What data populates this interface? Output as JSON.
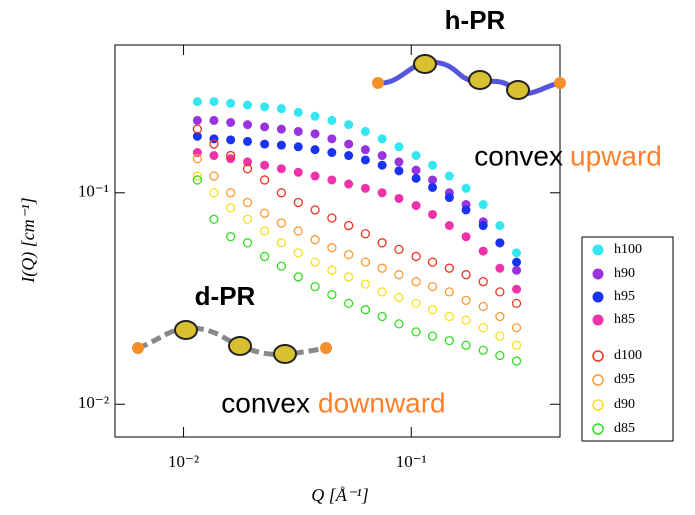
{
  "chart_data": {
    "type": "scatter",
    "x_label": "Q [Å⁻¹]",
    "y_label": "I(Q) [cm⁻¹]",
    "xlog": true,
    "ylog": true,
    "xlim": [
      0.005,
      0.45
    ],
    "ylim": [
      0.007,
      0.5
    ],
    "xticks": [
      {
        "value": 0.01,
        "label": "10⁻²"
      },
      {
        "value": 0.1,
        "label": "10⁻¹"
      }
    ],
    "yticks": [
      {
        "value": 0.01,
        "label": "10⁻²"
      },
      {
        "value": 0.1,
        "label": "10⁻¹"
      }
    ],
    "x": [
      0.0115,
      0.0136,
      0.0161,
      0.0191,
      0.0227,
      0.0269,
      0.0319,
      0.0378,
      0.0448,
      0.0531,
      0.0629,
      0.0745,
      0.0883,
      0.105,
      0.124,
      0.147,
      0.174,
      0.207,
      0.245,
      0.29
    ],
    "series": [
      {
        "name": "h100",
        "color": "#33e6f0",
        "marker": "filled",
        "values": [
          0.27,
          0.27,
          0.265,
          0.26,
          0.255,
          0.25,
          0.24,
          0.23,
          0.22,
          0.21,
          0.195,
          0.18,
          0.165,
          0.15,
          0.135,
          0.12,
          0.105,
          0.088,
          0.07,
          0.052
        ]
      },
      {
        "name": "h90",
        "color": "#9933dd",
        "marker": "filled",
        "values": [
          0.22,
          0.22,
          0.215,
          0.21,
          0.205,
          0.2,
          0.195,
          0.19,
          0.18,
          0.17,
          0.16,
          0.15,
          0.14,
          0.128,
          0.115,
          0.1,
          0.088,
          0.073,
          0.058,
          0.043
        ]
      },
      {
        "name": "h95",
        "color": "#1a33ee",
        "marker": "filled",
        "values": [
          0.185,
          0.18,
          0.178,
          0.175,
          0.17,
          0.168,
          0.165,
          0.16,
          0.155,
          0.15,
          0.143,
          0.135,
          0.127,
          0.117,
          0.106,
          0.095,
          0.083,
          0.07,
          0.058,
          0.047
        ]
      },
      {
        "name": "h85",
        "color": "#ee33aa",
        "marker": "filled",
        "values": [
          0.155,
          0.15,
          0.145,
          0.14,
          0.135,
          0.13,
          0.125,
          0.12,
          0.115,
          0.11,
          0.105,
          0.1,
          0.094,
          0.087,
          0.079,
          0.07,
          0.062,
          0.053,
          0.044,
          0.035
        ]
      },
      {
        "name": "d100",
        "color": "#ee3322",
        "marker": "open",
        "values": [
          0.2,
          0.17,
          0.15,
          0.13,
          0.115,
          0.1,
          0.09,
          0.083,
          0.076,
          0.07,
          0.064,
          0.058,
          0.054,
          0.05,
          0.047,
          0.044,
          0.041,
          0.038,
          0.034,
          0.03
        ]
      },
      {
        "name": "d95",
        "color": "#ff9933",
        "marker": "open",
        "values": [
          0.145,
          0.12,
          0.1,
          0.09,
          0.08,
          0.072,
          0.066,
          0.06,
          0.055,
          0.051,
          0.047,
          0.044,
          0.041,
          0.038,
          0.036,
          0.034,
          0.031,
          0.029,
          0.026,
          0.023
        ]
      },
      {
        "name": "d90",
        "color": "#f5e020",
        "marker": "open",
        "values": [
          0.12,
          0.1,
          0.085,
          0.075,
          0.066,
          0.058,
          0.052,
          0.047,
          0.043,
          0.04,
          0.037,
          0.034,
          0.032,
          0.03,
          0.028,
          0.026,
          0.025,
          0.023,
          0.021,
          0.019
        ]
      },
      {
        "name": "d85",
        "color": "#33dd22",
        "marker": "open",
        "values": [
          0.115,
          0.075,
          0.062,
          0.058,
          0.05,
          0.045,
          0.04,
          0.036,
          0.033,
          0.03,
          0.028,
          0.026,
          0.024,
          0.022,
          0.021,
          0.02,
          0.019,
          0.018,
          0.017,
          0.016
        ]
      }
    ],
    "annotations": [
      {
        "text": "h-PR",
        "color": "#000000"
      },
      {
        "text": "convex",
        "color": "#000000"
      },
      {
        "text": "upward",
        "color": "#ff7f2a"
      },
      {
        "text": "d-PR",
        "color": "#000000"
      },
      {
        "text": "convex",
        "color": "#000000"
      },
      {
        "text": "downward",
        "color": "#ff7f2a"
      }
    ]
  }
}
